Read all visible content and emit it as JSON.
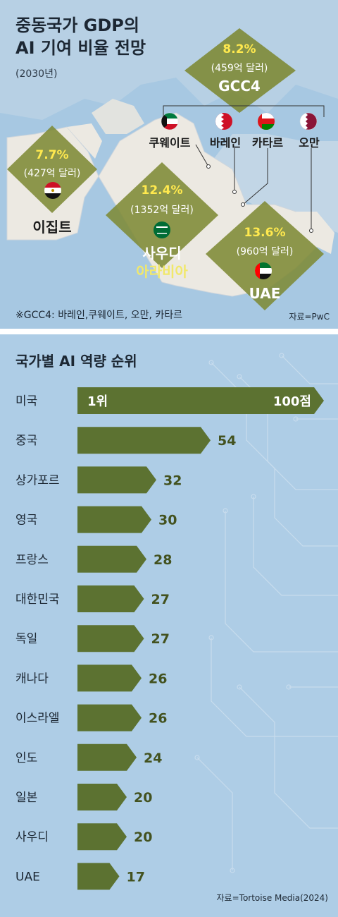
{
  "map": {
    "title_line1": "중동국가 GDP의",
    "title_line2": "AI 기여 비율 전망",
    "year": "(2030년)",
    "footnote": "※GCC4: 바레인,쿠웨이트, 오만, 카타르",
    "source": "자료=PwC",
    "gcc4": {
      "pct": "8.2%",
      "amount": "(459억 달러)",
      "name": "GCC4"
    },
    "egypt": {
      "pct": "7.7%",
      "amount": "(427억 달러)",
      "name": "이집트"
    },
    "saudi": {
      "pct": "12.4%",
      "amount": "(1352억 달러)",
      "name1": "사우디",
      "name2": "아라비아"
    },
    "uae": {
      "pct": "13.6%",
      "amount": "(960억 달러)",
      "name": "UAE"
    },
    "gcc_members": [
      "쿠웨이트",
      "바레인",
      "카타르",
      "오만"
    ],
    "colors": {
      "land": "#ece9e2",
      "sea": "#a7c8e2",
      "diamond": "#7e8a36",
      "pct": "#ffe94e"
    }
  },
  "chart_data": {
    "type": "bar",
    "title": "국가별 AI 역량 순위",
    "categories": [
      "미국",
      "중국",
      "상가포르",
      "영국",
      "프랑스",
      "대한민국",
      "독일",
      "캐나다",
      "이스라엘",
      "인도",
      "일본",
      "사우디",
      "UAE"
    ],
    "values": [
      100,
      54,
      32,
      30,
      28,
      27,
      27,
      26,
      26,
      24,
      20,
      20,
      17
    ],
    "rank_label": "1위",
    "top_value_label": "100점",
    "value_labels": [
      "100점",
      "54",
      "32",
      "30",
      "28",
      "27",
      "27",
      "26",
      "26",
      "24",
      "20",
      "20",
      "17"
    ],
    "xlim": [
      0,
      100
    ],
    "source": "자료=Tortoise Media(2024)",
    "colors": {
      "bar": "#5c7231",
      "label": "#43521f"
    }
  }
}
